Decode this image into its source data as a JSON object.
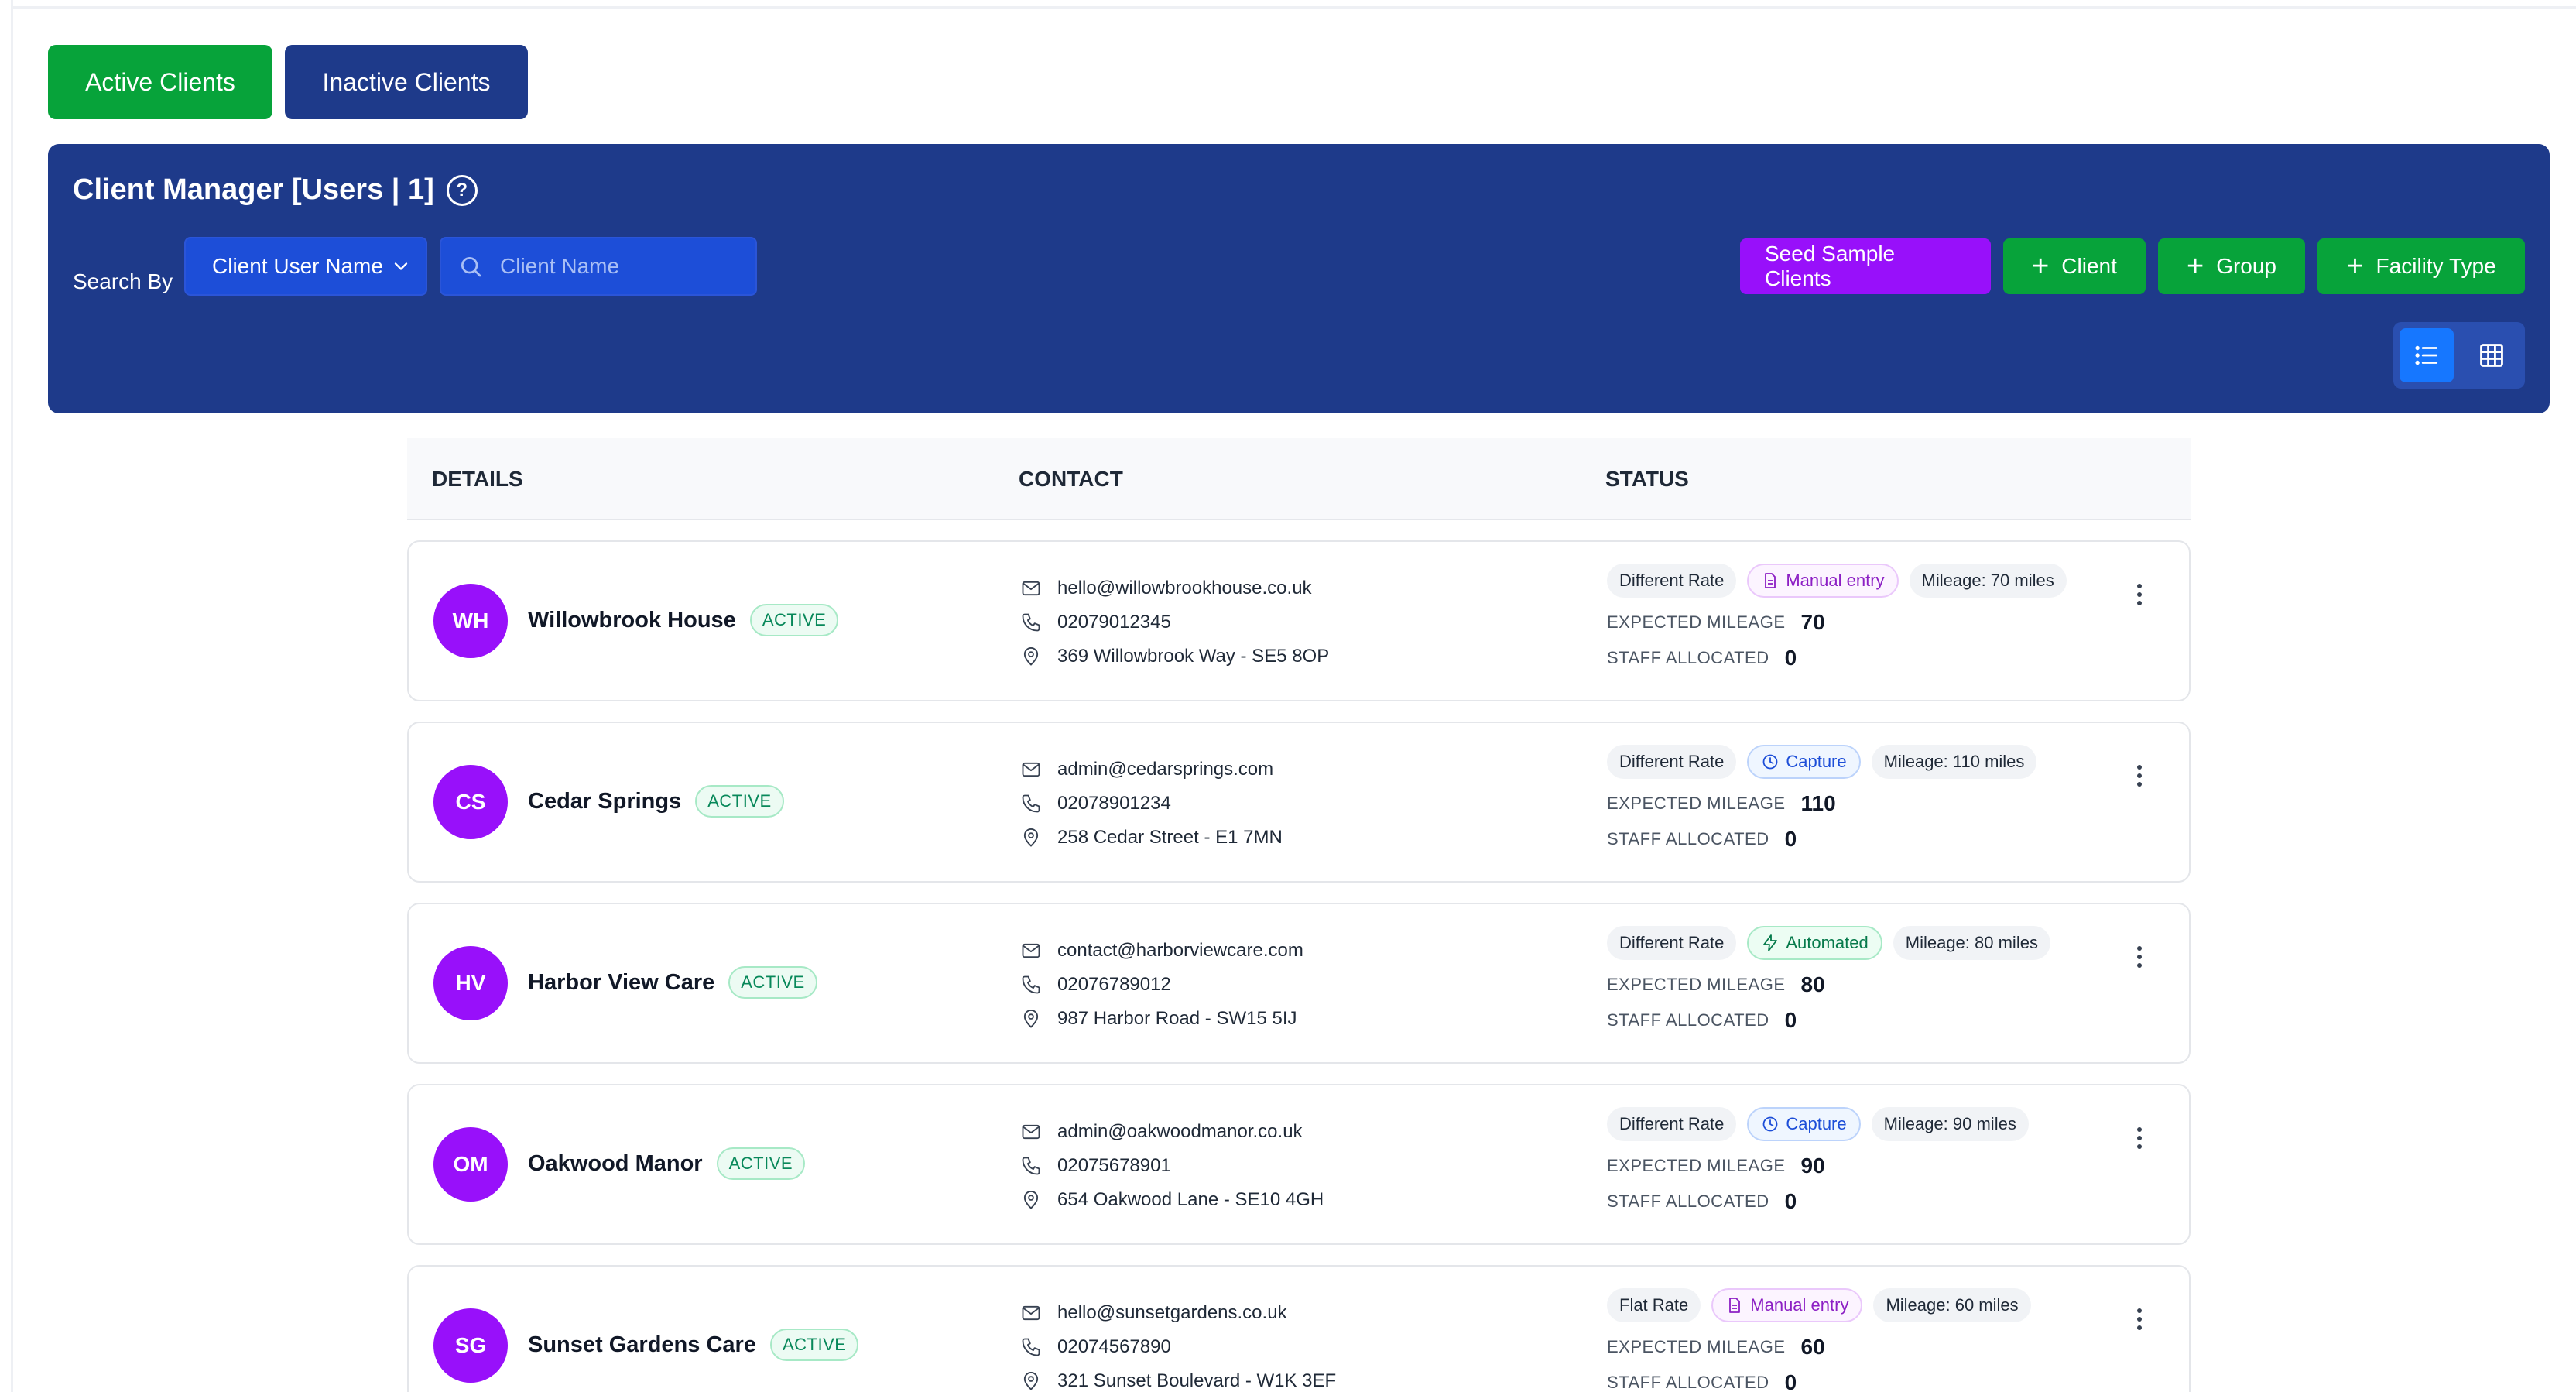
{
  "tabs": {
    "active_label": "Active Clients",
    "inactive_label": "Inactive Clients"
  },
  "header": {
    "title": "Client Manager [Users | 1]",
    "help_glyph": "?",
    "search_label": "Search By",
    "search_by_selected": "Client User Name",
    "search_placeholder": "Client Name",
    "seed_label": "Seed Sample Clients",
    "add_client_label": "Client",
    "add_group_label": "Group",
    "add_facility_label": "Facility Type",
    "view_mode": "list"
  },
  "table": {
    "columns": {
      "details": "DETAILS",
      "contact": "CONTACT",
      "status": "STATUS"
    },
    "labels": {
      "expected_mileage": "EXPECTED MILEAGE",
      "staff_allocated": "STAFF ALLOCATED"
    },
    "rows": [
      {
        "initials": "WH",
        "name": "Willowbrook House",
        "badge": "ACTIVE",
        "email": "hello@willowbrookhouse.co.uk",
        "phone": "02079012345",
        "address": "369 Willowbrook Way - SE5 8OP",
        "rate": "Different Rate",
        "mode": "Manual entry",
        "mode_kind": "manual",
        "mileage_pill": "Mileage: 70 miles",
        "expected_mileage": "70",
        "staff_allocated": "0"
      },
      {
        "initials": "CS",
        "name": "Cedar Springs",
        "badge": "ACTIVE",
        "email": "admin@cedarsprings.com",
        "phone": "02078901234",
        "address": "258 Cedar Street - E1 7MN",
        "rate": "Different Rate",
        "mode": "Capture",
        "mode_kind": "capture",
        "mileage_pill": "Mileage: 110 miles",
        "expected_mileage": "110",
        "staff_allocated": "0"
      },
      {
        "initials": "HV",
        "name": "Harbor View Care",
        "badge": "ACTIVE",
        "email": "contact@harborviewcare.com",
        "phone": "02076789012",
        "address": "987 Harbor Road - SW15 5IJ",
        "rate": "Different Rate",
        "mode": "Automated",
        "mode_kind": "auto",
        "mileage_pill": "Mileage: 80 miles",
        "expected_mileage": "80",
        "staff_allocated": "0"
      },
      {
        "initials": "OM",
        "name": "Oakwood Manor",
        "badge": "ACTIVE",
        "email": "admin@oakwoodmanor.co.uk",
        "phone": "02075678901",
        "address": "654 Oakwood Lane - SE10 4GH",
        "rate": "Different Rate",
        "mode": "Capture",
        "mode_kind": "capture",
        "mileage_pill": "Mileage: 90 miles",
        "expected_mileage": "90",
        "staff_allocated": "0"
      },
      {
        "initials": "SG",
        "name": "Sunset Gardens Care",
        "badge": "ACTIVE",
        "email": "hello@sunsetgardens.co.uk",
        "phone": "02074567890",
        "address": "321 Sunset Boulevard - W1K 3EF",
        "rate": "Flat Rate",
        "mode": "Manual entry",
        "mode_kind": "manual",
        "mileage_pill": "Mileage: 60 miles",
        "expected_mileage": "60",
        "staff_allocated": "0"
      }
    ]
  },
  "colors": {
    "primary_navy": "#1e3a8a",
    "brand_green": "#07a33a",
    "accent_purple": "#9810fa",
    "toggle_blue": "#1677ff"
  }
}
